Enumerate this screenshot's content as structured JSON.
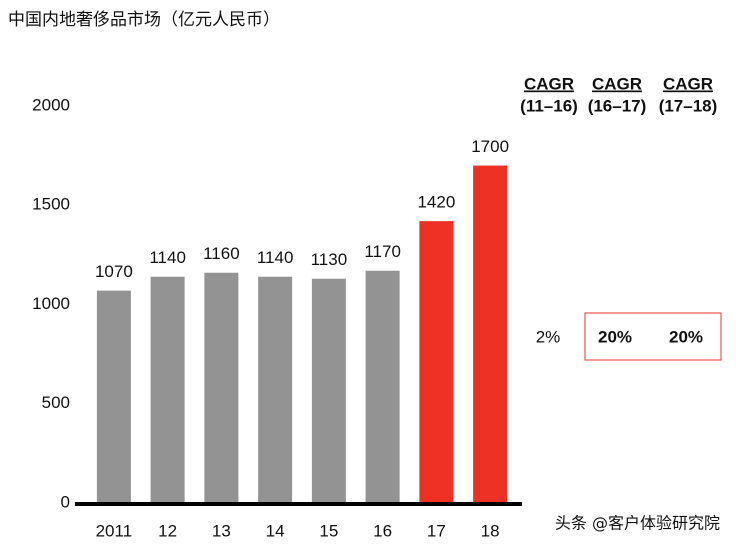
{
  "chart_data": {
    "type": "bar",
    "title": "中国内地奢侈品市场（亿元人民币）",
    "categories": [
      "2011",
      "12",
      "13",
      "14",
      "15",
      "16",
      "17",
      "18"
    ],
    "values": [
      1070,
      1140,
      1160,
      1140,
      1130,
      1170,
      1420,
      1700
    ],
    "colors": [
      "#939393",
      "#939393",
      "#939393",
      "#939393",
      "#939393",
      "#939393",
      "#ee3124",
      "#ee3124"
    ],
    "ylim": [
      0,
      2000
    ],
    "yticks": [
      0,
      500,
      1000,
      1500,
      2000
    ],
    "grid": false,
    "cagr": [
      {
        "header": "CAGR",
        "period": "(11–16)",
        "text": "2%",
        "color": "#111111"
      },
      {
        "header": "CAGR",
        "period": "(16–17)",
        "text": "20%",
        "color": "#ee3124"
      },
      {
        "header": "CAGR",
        "period": "(17–18)",
        "text": "20%",
        "color": "#ee3124"
      }
    ],
    "watermark": "头条 @客户体验研究院"
  }
}
